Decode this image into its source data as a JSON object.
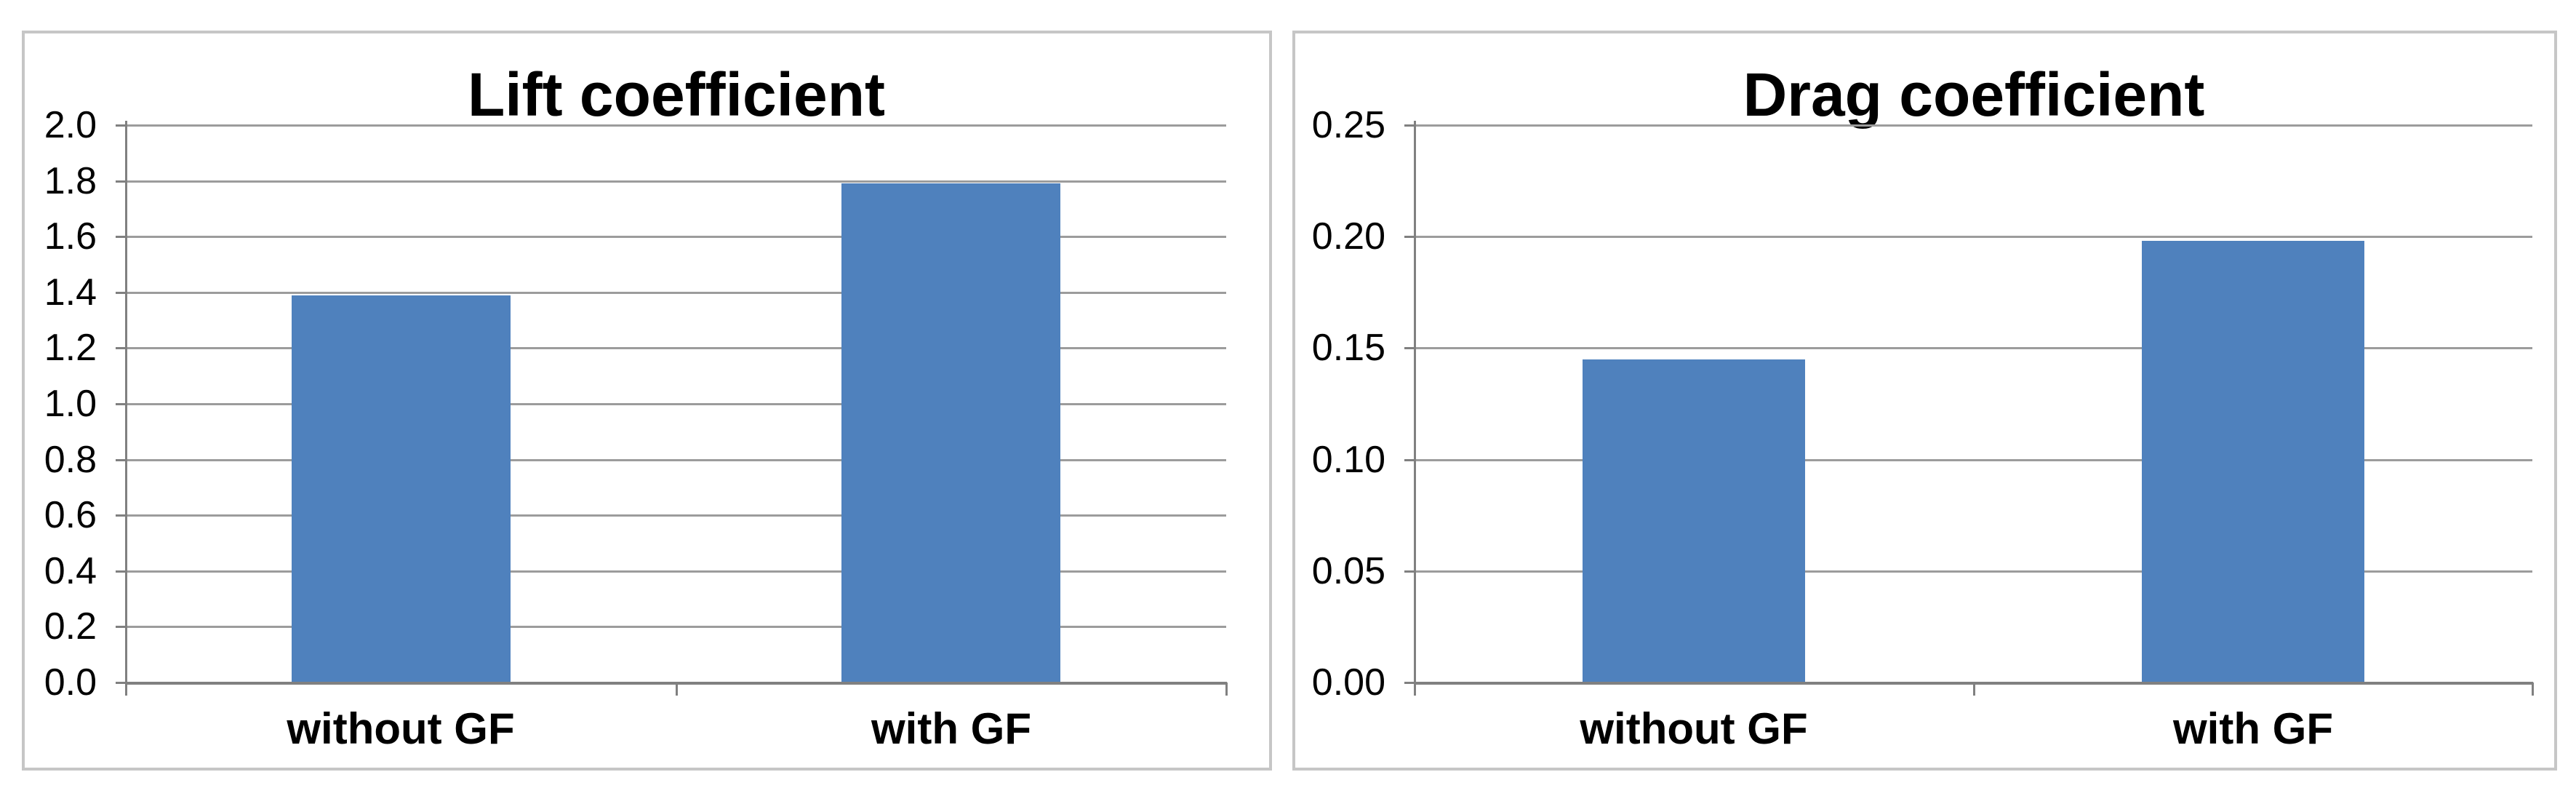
{
  "page": {
    "background": "#ffffff"
  },
  "chart_data": [
    {
      "type": "bar",
      "title": "Lift coefficient",
      "categories": [
        "without GF",
        "with GF"
      ],
      "values": [
        1.39,
        1.79
      ],
      "ylim": [
        0.0,
        2.0
      ],
      "ytick_step": 0.2,
      "ytick_labels": [
        "2.0",
        "1.8",
        "1.6",
        "1.4",
        "1.2",
        "1.0",
        "0.8",
        "0.6",
        "0.4",
        "0.2",
        "0.0"
      ],
      "xlabel": "",
      "ylabel": "",
      "grid": true,
      "legend": false,
      "bar_color": "#4F81BD"
    },
    {
      "type": "bar",
      "title": "Drag coefficient",
      "categories": [
        "without GF",
        "with GF"
      ],
      "values": [
        0.145,
        0.198
      ],
      "ylim": [
        0.0,
        0.25
      ],
      "ytick_step": 0.05,
      "ytick_labels": [
        "0.25",
        "0.20",
        "0.15",
        "0.10",
        "0.05",
        "0.00"
      ],
      "xlabel": "",
      "ylabel": "",
      "grid": true,
      "legend": false,
      "bar_color": "#4F81BD"
    }
  ],
  "style": {
    "bar_color": "#4F81BD",
    "gridline_color": "#9C9C9C",
    "axis_color": "#808080",
    "panel_border_color": "#C6C6C6",
    "text_color": "#000000"
  }
}
